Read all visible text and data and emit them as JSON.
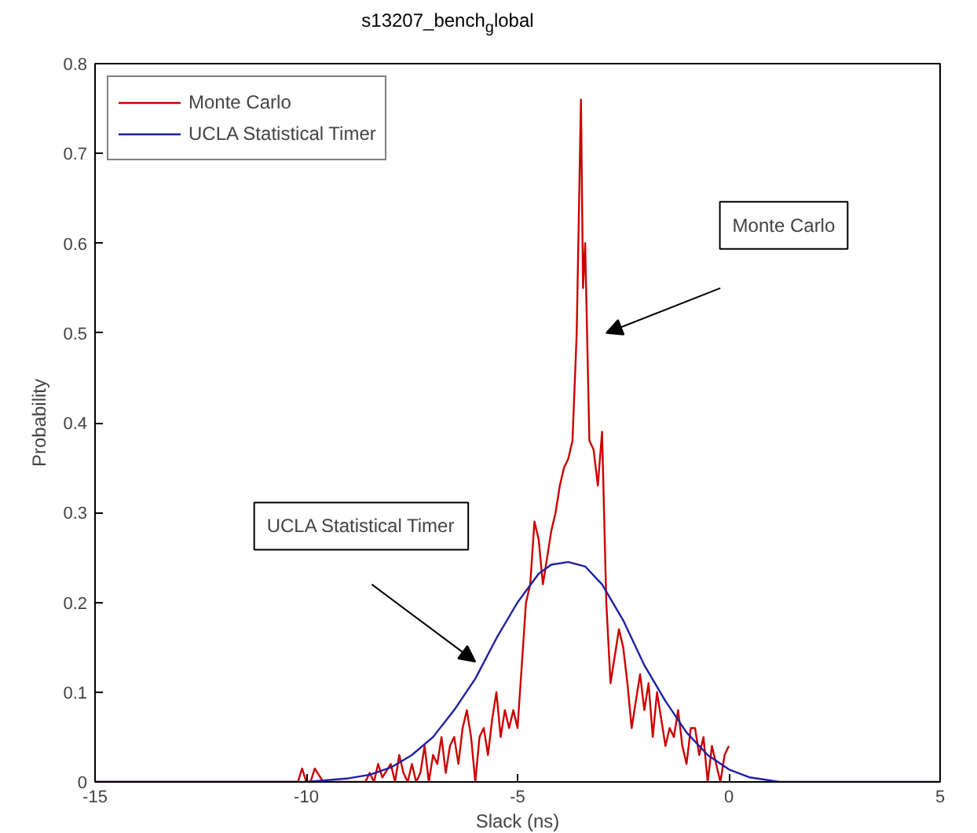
{
  "chart_data": {
    "type": "line",
    "title": "s13207_bench$_{g}$lobal",
    "xlabel": "Slack (ns)",
    "ylabel": "Probability",
    "xlim": [
      -15,
      5
    ],
    "xticks": [
      -15,
      -10,
      -5,
      0,
      5
    ],
    "ylim": [
      0,
      0.8
    ],
    "yticks": [
      0,
      0.1,
      0.2,
      0.3,
      0.4,
      0.5,
      0.6,
      0.7,
      0.8
    ],
    "grid": false,
    "legend": "top left",
    "marker": "none",
    "line_style": "solid",
    "series": [
      {
        "name": "Monte Carlo",
        "color": "#cc0000",
        "x": [
          -15,
          -10.2,
          -10.1,
          -10,
          -9.9,
          -9.8,
          -9.6,
          -9.5,
          -9.4,
          -9.0,
          -8.6,
          -8.5,
          -8.4,
          -8.3,
          -8.2,
          -8.0,
          -7.9,
          -7.8,
          -7.7,
          -7.6,
          -7.5,
          -7.4,
          -7.3,
          -7.2,
          -7.1,
          -7.0,
          -6.9,
          -6.8,
          -6.7,
          -6.6,
          -6.5,
          -6.4,
          -6.3,
          -6.2,
          -6.1,
          -6.0,
          -5.9,
          -5.8,
          -5.7,
          -5.6,
          -5.5,
          -5.4,
          -5.3,
          -5.2,
          -5.1,
          -5.0,
          -4.9,
          -4.8,
          -4.7,
          -4.6,
          -4.5,
          -4.4,
          -4.3,
          -4.2,
          -4.1,
          -4.0,
          -3.9,
          -3.8,
          -3.7,
          -3.6,
          -3.5,
          -3.45,
          -3.4,
          -3.3,
          -3.2,
          -3.1,
          -3.0,
          -2.9,
          -2.8,
          -2.7,
          -2.6,
          -2.5,
          -2.4,
          -2.3,
          -2.2,
          -2.1,
          -2.0,
          -1.9,
          -1.8,
          -1.7,
          -1.6,
          -1.5,
          -1.4,
          -1.3,
          -1.2,
          -1.1,
          -1.0,
          -0.9,
          -0.8,
          -0.7,
          -0.6,
          -0.5,
          -0.4,
          -0.3,
          -0.2,
          -0.1,
          0.0
        ],
        "values": [
          0,
          0,
          0.015,
          0,
          0,
          0.015,
          0,
          0,
          0,
          0,
          0,
          0.01,
          0,
          0.02,
          0.005,
          0.02,
          0,
          0.03,
          0.01,
          0,
          0.02,
          0,
          0.01,
          0.04,
          0,
          0.03,
          0.02,
          0.05,
          0.01,
          0.04,
          0.05,
          0.02,
          0.06,
          0.08,
          0.05,
          0,
          0.05,
          0.06,
          0.03,
          0.07,
          0.1,
          0.05,
          0.08,
          0.06,
          0.08,
          0.06,
          0.13,
          0.2,
          0.22,
          0.29,
          0.27,
          0.22,
          0.25,
          0.28,
          0.3,
          0.33,
          0.35,
          0.36,
          0.38,
          0.5,
          0.76,
          0.55,
          0.6,
          0.38,
          0.37,
          0.33,
          0.39,
          0.2,
          0.11,
          0.14,
          0.17,
          0.15,
          0.11,
          0.06,
          0.09,
          0.12,
          0.08,
          0.11,
          0.05,
          0.1,
          0.07,
          0.04,
          0.06,
          0.05,
          0.08,
          0.04,
          0.02,
          0.06,
          0.06,
          0.03,
          0.05,
          0,
          0.04,
          0.02,
          0,
          0.03,
          0.04
        ]
      },
      {
        "name": "UCLA Statistical Timer",
        "color": "#1f1fa0",
        "x": [
          -15,
          -10,
          -9,
          -8.5,
          -8,
          -7.5,
          -7,
          -6.5,
          -6,
          -5.5,
          -5,
          -4.5,
          -4.2,
          -3.8,
          -3.4,
          -3,
          -2.5,
          -2,
          -1.5,
          -1,
          -0.5,
          0,
          0.5,
          1.2,
          5
        ],
        "values": [
          0,
          0,
          0.004,
          0.008,
          0.016,
          0.03,
          0.05,
          0.08,
          0.115,
          0.16,
          0.2,
          0.232,
          0.242,
          0.245,
          0.24,
          0.22,
          0.18,
          0.13,
          0.09,
          0.055,
          0.03,
          0.014,
          0.005,
          0,
          0
        ]
      }
    ],
    "annotations": [
      "Monte Carlo",
      "UCLA Statistical Timer"
    ]
  }
}
